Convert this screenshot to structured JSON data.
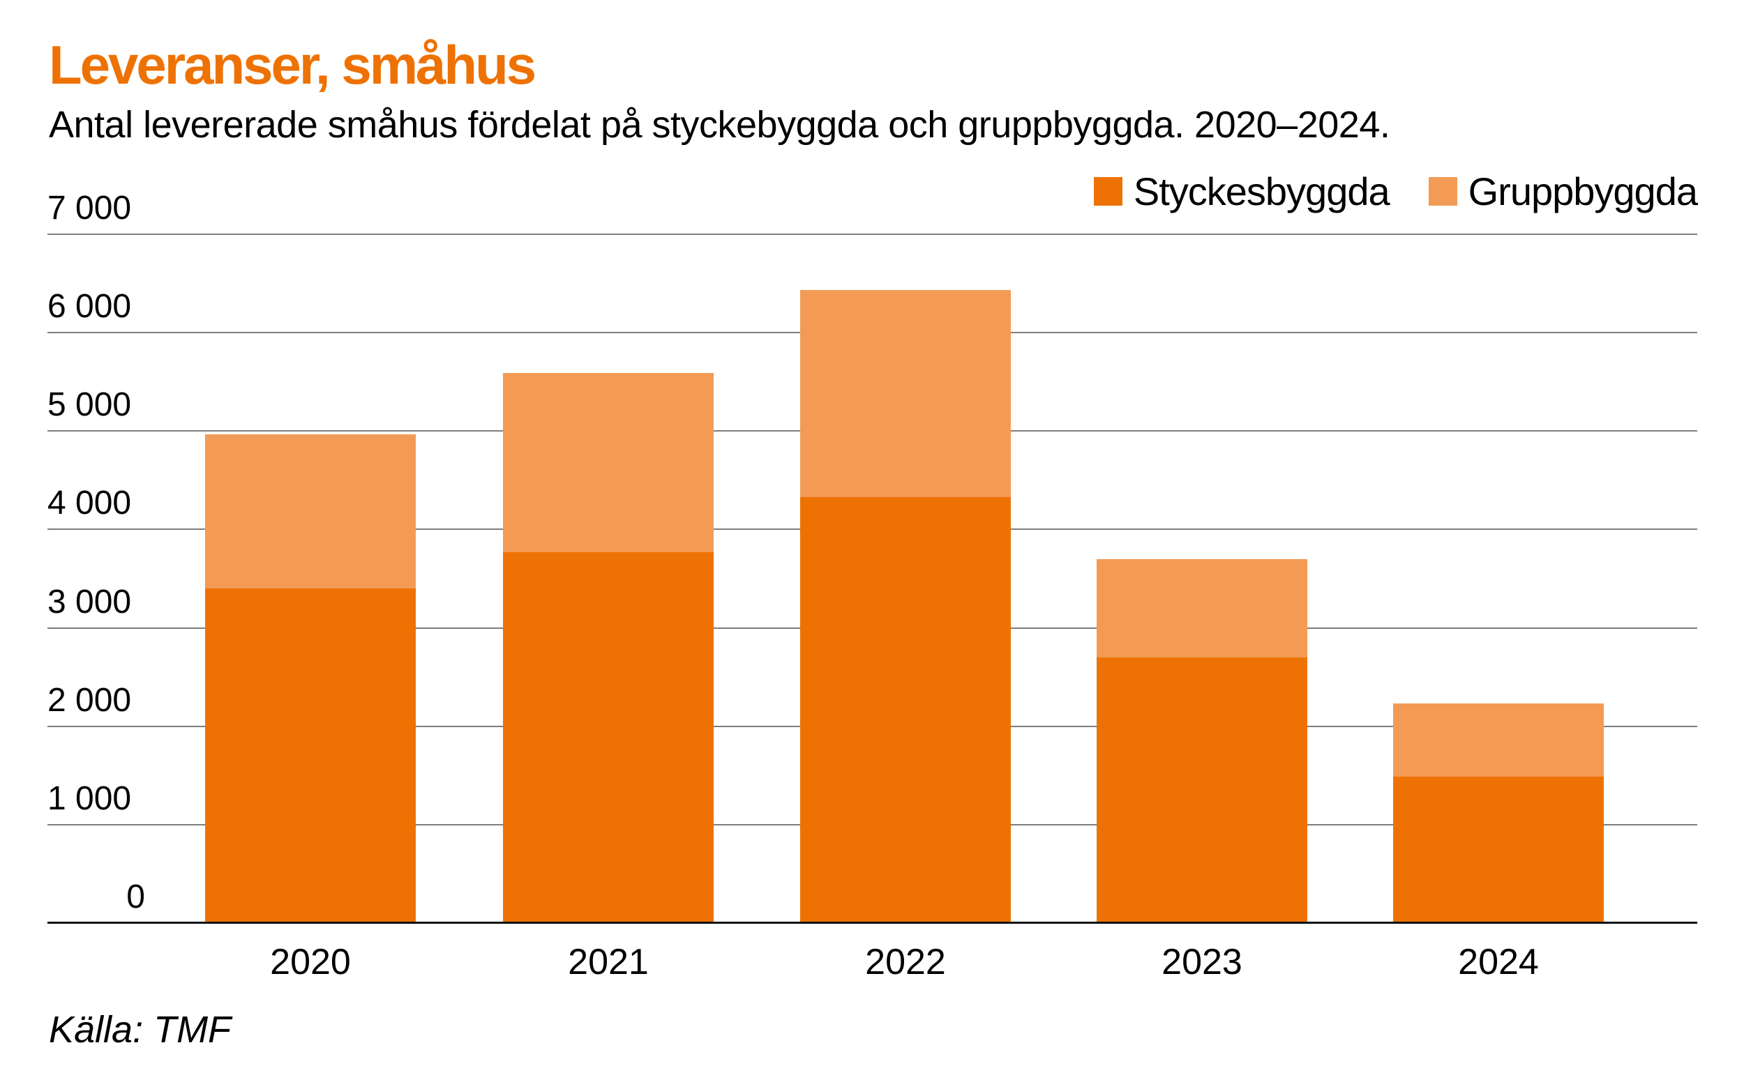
{
  "header": {
    "title": "Leveranser, småhus",
    "title_color": "#ee7203",
    "subtitle": "Antal levererade småhus fördelat på styckebyggda och gruppbyggda. 2020–2024."
  },
  "legend": {
    "items": [
      {
        "label": "Styckesbyggda",
        "color": "#ee7203"
      },
      {
        "label": "Gruppbyggda",
        "color": "#f39b55"
      }
    ]
  },
  "footer": {
    "source": "Källa: TMF"
  },
  "chart_data": {
    "type": "bar",
    "stacked": true,
    "title": "Leveranser, småhus",
    "categories": [
      "2020",
      "2021",
      "2022",
      "2023",
      "2024"
    ],
    "series": [
      {
        "name": "Styckesbyggda",
        "color": "#ee7203",
        "values": [
          3400,
          3770,
          4330,
          2700,
          1490
        ]
      },
      {
        "name": "Gruppbyggda",
        "color": "#f39b55",
        "values": [
          1570,
          1820,
          2100,
          1000,
          740
        ]
      }
    ],
    "totals": [
      4970,
      5590,
      6430,
      3700,
      2230
    ],
    "xlabel": "",
    "ylabel": "",
    "ylim": [
      0,
      7000
    ],
    "y_step": 1000,
    "y_tick_labels": [
      "0",
      "1 000",
      "2 000",
      "3 000",
      "4 000",
      "5 000",
      "6 000",
      "7 000"
    ],
    "grid": true,
    "gridline_color": "#7d7d7d",
    "axis_color": "#111111",
    "legend_position": "top-right"
  }
}
